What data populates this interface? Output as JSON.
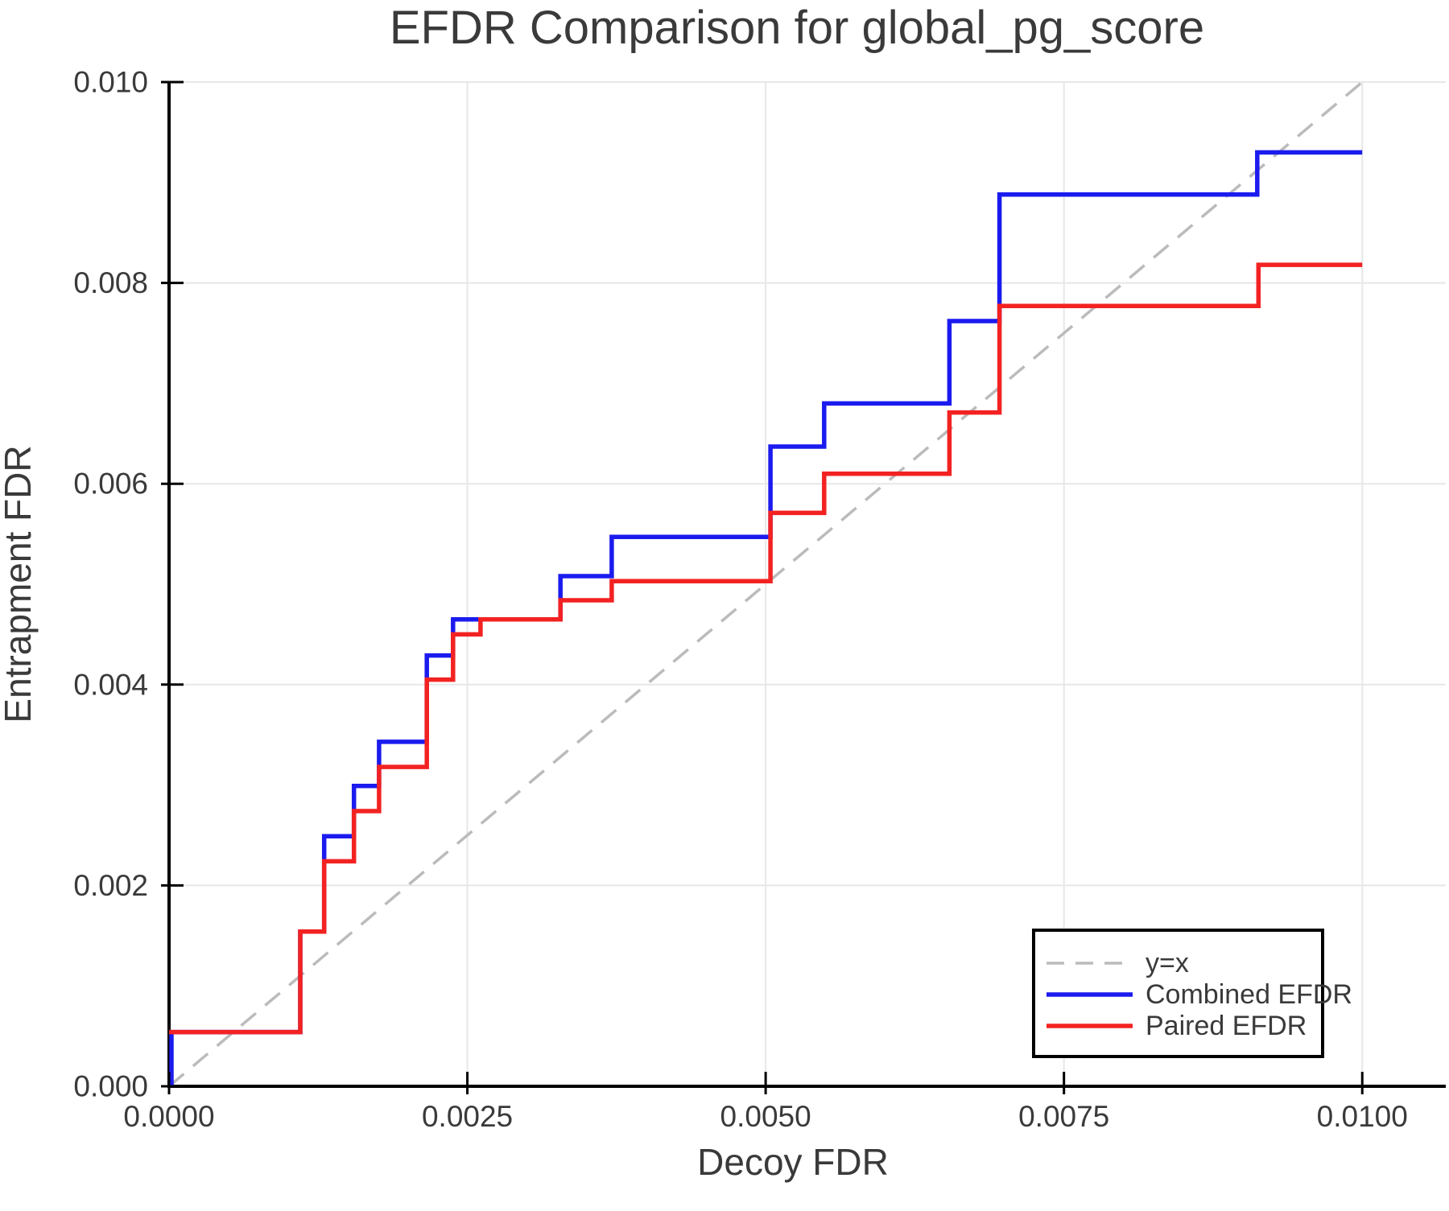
{
  "chart_data": {
    "type": "line",
    "subtype": "step",
    "title": "EFDR Comparison for global_pg_score",
    "xlabel": "Decoy FDR",
    "ylabel": "Entrapment FDR",
    "xlim": [
      0.0,
      0.0107
    ],
    "ylim": [
      0.0,
      0.01
    ],
    "grid": true,
    "legend_position": "lower right",
    "x_ticks": [
      0.0,
      0.0025,
      0.005,
      0.0075,
      0.01
    ],
    "x_tick_labels": [
      "0.0000",
      "0.0025",
      "0.0050",
      "0.0075",
      "0.0100"
    ],
    "y_ticks": [
      0.0,
      0.002,
      0.004,
      0.006,
      0.008,
      0.01
    ],
    "y_tick_labels": [
      "0.000",
      "0.002",
      "0.004",
      "0.006",
      "0.008",
      "0.010"
    ],
    "colors": {
      "text": "#3a3a3a",
      "grid": "#e7e7e7",
      "axis": "#000000",
      "identity": "#bbbbbb",
      "combined": "#1b1bef",
      "paired": "#f32222"
    },
    "series": [
      {
        "name": "y=x",
        "style": "dashed",
        "color": "#bbbbbb",
        "points": [
          [
            0.0,
            0.0
          ],
          [
            0.01,
            0.01
          ]
        ]
      },
      {
        "name": "Combined EFDR",
        "style": "solid",
        "color": "#1b1bef",
        "points": [
          [
            2e-05,
            0.0
          ],
          [
            2e-05,
            0.00054
          ],
          [
            0.0011,
            0.00054
          ],
          [
            0.0011,
            0.00154
          ],
          [
            0.0013,
            0.00154
          ],
          [
            0.0013,
            0.00249
          ],
          [
            0.00155,
            0.00249
          ],
          [
            0.00155,
            0.00299
          ],
          [
            0.00176,
            0.00299
          ],
          [
            0.00176,
            0.00343
          ],
          [
            0.00216,
            0.00343
          ],
          [
            0.00216,
            0.00429
          ],
          [
            0.00238,
            0.00429
          ],
          [
            0.00238,
            0.00465
          ],
          [
            0.00328,
            0.00465
          ],
          [
            0.00328,
            0.00508
          ],
          [
            0.00371,
            0.00508
          ],
          [
            0.00371,
            0.00547
          ],
          [
            0.00504,
            0.00547
          ],
          [
            0.00504,
            0.00637
          ],
          [
            0.00549,
            0.00637
          ],
          [
            0.00549,
            0.0068
          ],
          [
            0.00654,
            0.0068
          ],
          [
            0.00654,
            0.00762
          ],
          [
            0.00696,
            0.00762
          ],
          [
            0.00696,
            0.00888
          ],
          [
            0.00912,
            0.00888
          ],
          [
            0.00912,
            0.0093
          ],
          [
            0.01,
            0.0093
          ]
        ]
      },
      {
        "name": "Paired EFDR",
        "style": "solid",
        "color": "#f32222",
        "points": [
          [
            0.0,
            0.00054
          ],
          [
            0.0011,
            0.00054
          ],
          [
            0.0011,
            0.00154
          ],
          [
            0.0013,
            0.00154
          ],
          [
            0.0013,
            0.00224
          ],
          [
            0.00155,
            0.00224
          ],
          [
            0.00155,
            0.00274
          ],
          [
            0.00176,
            0.00274
          ],
          [
            0.00176,
            0.00318
          ],
          [
            0.00216,
            0.00318
          ],
          [
            0.00216,
            0.00405
          ],
          [
            0.00238,
            0.00405
          ],
          [
            0.00238,
            0.0045
          ],
          [
            0.00261,
            0.0045
          ],
          [
            0.00261,
            0.00465
          ],
          [
            0.00328,
            0.00465
          ],
          [
            0.00328,
            0.00484
          ],
          [
            0.00371,
            0.00484
          ],
          [
            0.00371,
            0.00503
          ],
          [
            0.00504,
            0.00503
          ],
          [
            0.00504,
            0.00571
          ],
          [
            0.00549,
            0.00571
          ],
          [
            0.00549,
            0.0061
          ],
          [
            0.00654,
            0.0061
          ],
          [
            0.00654,
            0.00671
          ],
          [
            0.00696,
            0.00671
          ],
          [
            0.00696,
            0.00777
          ],
          [
            0.00913,
            0.00777
          ],
          [
            0.00913,
            0.00818
          ],
          [
            0.01,
            0.00818
          ]
        ]
      }
    ]
  }
}
